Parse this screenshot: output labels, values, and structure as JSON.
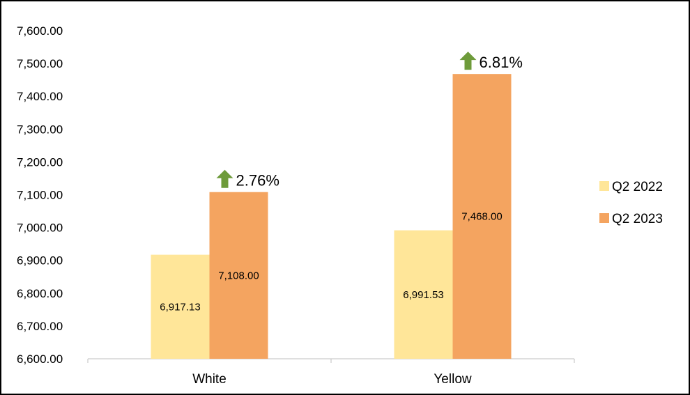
{
  "chart_data": {
    "type": "bar",
    "categories": [
      "White",
      "Yellow"
    ],
    "series": [
      {
        "name": "Q2 2022",
        "values": [
          6917.13,
          6991.53
        ],
        "labels": [
          "6,917.13",
          "6,991.53"
        ]
      },
      {
        "name": "Q2 2023",
        "values": [
          7108.0,
          7468.0
        ],
        "labels": [
          "7,108.00",
          "7,468.00"
        ]
      }
    ],
    "ylim": [
      6600,
      7600
    ],
    "yticks": [
      6600,
      6700,
      6800,
      6900,
      7000,
      7100,
      7200,
      7300,
      7400,
      7500,
      7600
    ],
    "ytick_labels": [
      "6,600.00",
      "6,700.00",
      "6,800.00",
      "6,900.00",
      "7,000.00",
      "7,100.00",
      "7,200.00",
      "7,300.00",
      "7,400.00",
      "7,500.00",
      "7,600.00"
    ],
    "annotations": [
      "2.76%",
      "6.81%"
    ],
    "annotation_icon": "up-arrow-icon",
    "grid": false,
    "legend_position": "right",
    "colors": {
      "Q2 2022": "#FFE699",
      "Q2 2023": "#F4A460",
      "arrow": "#6E9B3A",
      "axis": "#BFBFBF"
    }
  }
}
